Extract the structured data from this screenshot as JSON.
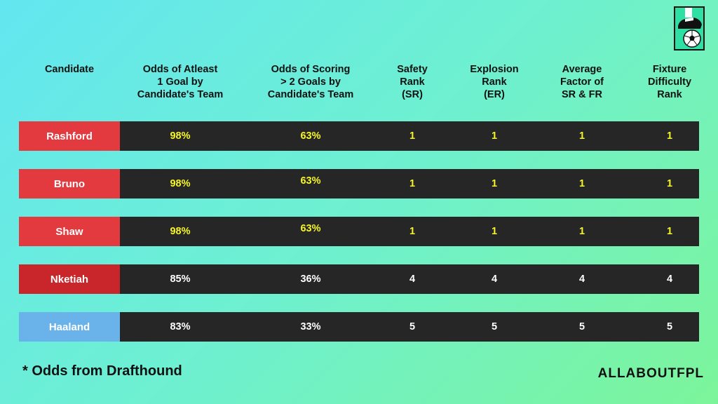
{
  "colors": {
    "red": "#e23a3f",
    "dark_red": "#c8262a",
    "sky_blue": "#6ab2ea",
    "dark_cell": "#262626",
    "highlight": "#f5f52a",
    "white": "#ffffff"
  },
  "logo": {
    "icon": "football-boot-and-ball-icon"
  },
  "headers": [
    "Candidate",
    "Odds of Atleast\n1 Goal by\nCandidate's Team",
    "Odds of Scoring\n> 2 Goals by\nCandidate's Team",
    "Safety\nRank\n(SR)",
    "Explosion\nRank\n(ER)",
    "Average\nFactor of\nSR & FR",
    "Fixture\nDifficulty\nRank"
  ],
  "rows": [
    {
      "name": "Rashford",
      "odds1": "98%",
      "odds2": "63%",
      "sr": "1",
      "er": "1",
      "avg": "1",
      "fdr": "1",
      "name_color": "#e23a3f",
      "value_color": "#f5f52a"
    },
    {
      "name": "Bruno",
      "odds1": "98%",
      "odds2": "63%",
      "sr": "1",
      "er": "1",
      "avg": "1",
      "fdr": "1",
      "name_color": "#e23a3f",
      "value_color": "#f5f52a"
    },
    {
      "name": "Shaw",
      "odds1": "98%",
      "odds2": "63%",
      "sr": "1",
      "er": "1",
      "avg": "1",
      "fdr": "1",
      "name_color": "#e23a3f",
      "value_color": "#f5f52a"
    },
    {
      "name": "Nketiah",
      "odds1": "85%",
      "odds2": "36%",
      "sr": "4",
      "er": "4",
      "avg": "4",
      "fdr": "4",
      "name_color": "#c8262a",
      "value_color": "#ffffff"
    },
    {
      "name": "Haaland",
      "odds1": "83%",
      "odds2": "33%",
      "sr": "5",
      "er": "5",
      "avg": "5",
      "fdr": "5",
      "name_color": "#6ab2ea",
      "value_color": "#ffffff"
    }
  ],
  "footer": {
    "note": "*  Odds from Drafthound",
    "brand": "ALLABOUTFPL"
  }
}
